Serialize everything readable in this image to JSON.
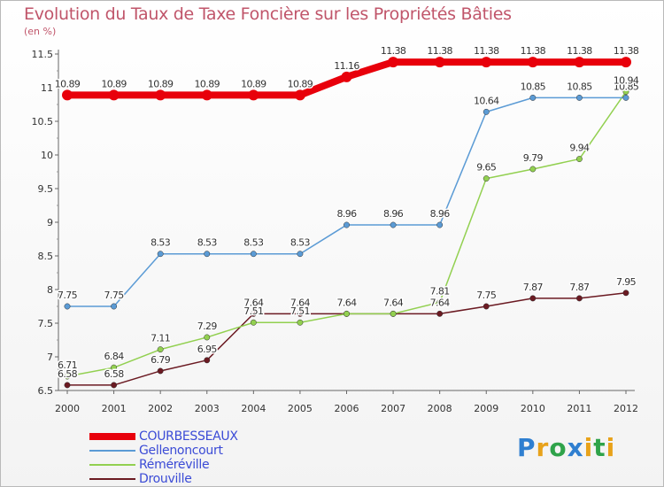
{
  "chart_data": {
    "type": "line",
    "title": "Evolution du Taux de Taxe Foncière sur les Propriétés Bâties",
    "unit_label": "(en %)",
    "x": [
      "2000",
      "2001",
      "2002",
      "2003",
      "2004",
      "2005",
      "2006",
      "2007",
      "2008",
      "2009",
      "2010",
      "2011",
      "2012"
    ],
    "ylim": [
      6.5,
      11.5
    ],
    "yticks": [
      "6.5",
      "7",
      "7.5",
      "8",
      "8.5",
      "9",
      "9.5",
      "10",
      "10.5",
      "11",
      "11.5"
    ],
    "grid": false,
    "legend_position": "bottom-left",
    "series": [
      {
        "name": "COURBESSEAUX",
        "color": "#e8000b",
        "stroke_style": "thick",
        "values": [
          10.89,
          10.89,
          10.89,
          10.89,
          10.89,
          10.89,
          11.16,
          11.38,
          11.38,
          11.38,
          11.38,
          11.38,
          11.38
        ],
        "labels": [
          "10.89",
          "10.89",
          "10.89",
          "10.89",
          "10.89",
          "10.89",
          "11.16",
          "11.38",
          "11.38",
          "11.38",
          "11.38",
          "11.38",
          "11.38"
        ]
      },
      {
        "name": "Gellenoncourt",
        "color": "#5b9bd5",
        "stroke_style": "thin",
        "values": [
          7.75,
          7.75,
          8.53,
          8.53,
          8.53,
          8.53,
          8.96,
          8.96,
          8.96,
          10.64,
          10.85,
          10.85,
          10.85
        ],
        "labels": [
          "7.75",
          "7.75",
          "8.53",
          "8.53",
          "8.53",
          "8.53",
          "8.96",
          "8.96",
          "8.96",
          "10.64",
          "10.85",
          "10.85",
          "10.85"
        ]
      },
      {
        "name": "Réméréville",
        "color": "#92d050",
        "stroke_style": "thin",
        "values": [
          6.71,
          6.84,
          7.11,
          7.29,
          7.51,
          7.51,
          7.64,
          7.64,
          7.81,
          9.65,
          9.79,
          9.94,
          10.94
        ],
        "labels": [
          "6.71",
          "6.84",
          "7.11",
          "7.29",
          "7.51",
          "7.51",
          "7.64",
          "7.64",
          "7.81",
          "9.65",
          "9.79",
          "9.94",
          "10.94"
        ]
      },
      {
        "name": "Drouville",
        "color": "#6b1a22",
        "stroke_style": "thin",
        "values": [
          6.58,
          6.58,
          6.79,
          6.95,
          7.64,
          7.64,
          7.64,
          7.64,
          7.64,
          7.75,
          7.87,
          7.87,
          7.95
        ],
        "labels": [
          "6.58",
          "6.58",
          "6.79",
          "6.95",
          "7.64",
          "7.64",
          "7.64",
          "7.64",
          "7.64",
          "7.75",
          "7.87",
          "7.87",
          "7.95"
        ]
      }
    ]
  },
  "logo": {
    "letters": [
      "P",
      "r",
      "o",
      "x",
      "i",
      "t",
      "i"
    ],
    "colors": [
      "#2f7fd0",
      "#e8a21a",
      "#2fa34a",
      "#2f7fd0",
      "#e8a21a",
      "#2fa34a",
      "#e8a21a"
    ]
  }
}
